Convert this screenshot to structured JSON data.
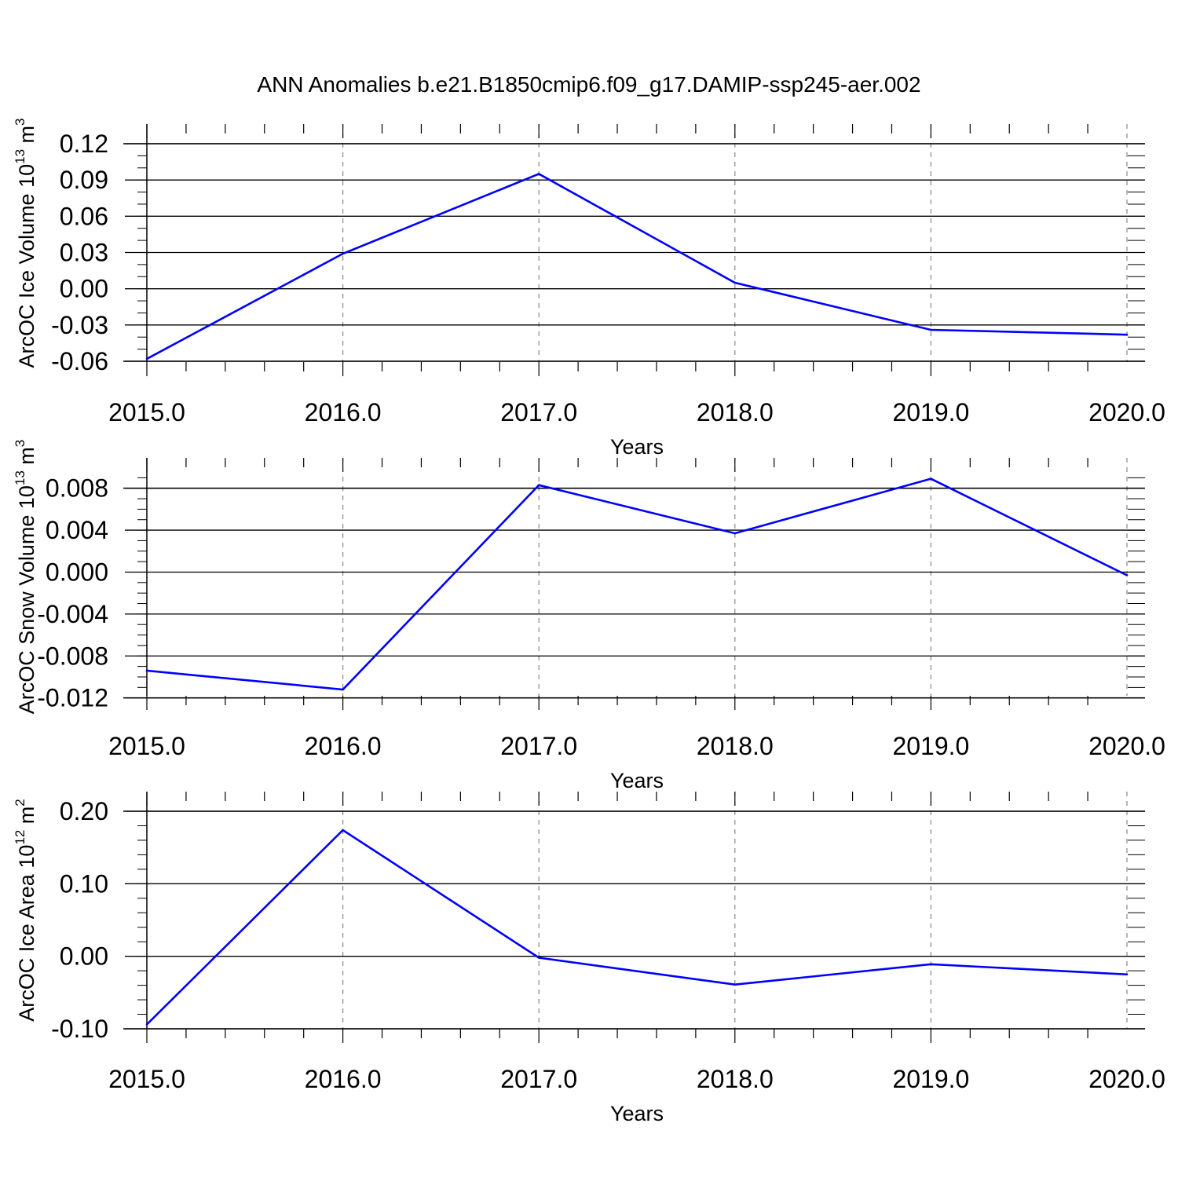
{
  "title": "ANN Anomalies b.e21.B1850cmip6.f09_g17.DAMIP-ssp245-aer.002",
  "colors": {
    "line": "#0000ff",
    "axis": "#000000",
    "grid": "#888888"
  },
  "chart_data": [
    {
      "type": "line",
      "xlabel": "Years",
      "ylabel": {
        "text": "ArcOC Ice Volume 10",
        "exp": "13",
        "unit": " m",
        "unit_exp": "3"
      },
      "x": [
        2015,
        2016,
        2017,
        2018,
        2019,
        2020
      ],
      "xticks": [
        "2015.0",
        "2016.0",
        "2017.0",
        "2018.0",
        "2019.0",
        "2020.0"
      ],
      "xlim": [
        2015,
        2020
      ],
      "ylim": [
        -0.06,
        0.12
      ],
      "yticks": [
        0.12,
        0.09,
        0.06,
        0.03,
        0.0,
        -0.03,
        -0.06
      ],
      "yticklabels": [
        "0.12",
        "0.09",
        "0.06",
        "0.03",
        "0.00",
        "-0.03",
        "-0.06"
      ],
      "yminor": 0.01,
      "grid": "vertical-dashed",
      "values": [
        -0.058,
        0.029,
        0.095,
        0.005,
        -0.034,
        -0.038
      ]
    },
    {
      "type": "line",
      "xlabel": "Years",
      "ylabel": {
        "text": "ArcOC Snow Volume 10",
        "exp": "13",
        "unit": " m",
        "unit_exp": "3"
      },
      "x": [
        2015,
        2016,
        2017,
        2018,
        2019,
        2020
      ],
      "xticks": [
        "2015.0",
        "2016.0",
        "2017.0",
        "2018.0",
        "2019.0",
        "2020.0"
      ],
      "xlim": [
        2015,
        2020
      ],
      "ylim": [
        -0.0118,
        0.0091
      ],
      "yticks": [
        0.008,
        0.004,
        0.0,
        -0.004,
        -0.008,
        -0.012
      ],
      "yticklabels": [
        "0.008",
        "0.004",
        "0.000",
        "-0.004",
        "-0.008",
        "-0.012"
      ],
      "yminor": 0.001,
      "grid": "vertical-dashed",
      "values": [
        -0.0094,
        -0.0112,
        0.0083,
        0.0037,
        0.0089,
        -0.0003
      ]
    },
    {
      "type": "line",
      "xlabel": "Years",
      "ylabel": {
        "text": "ArcOC Ice Area 10",
        "exp": "12",
        "unit": " m",
        "unit_exp": "2"
      },
      "x": [
        2015,
        2016,
        2017,
        2018,
        2019,
        2020
      ],
      "xticks": [
        "2015.0",
        "2016.0",
        "2017.0",
        "2018.0",
        "2019.0",
        "2020.0"
      ],
      "xlim": [
        2015,
        2020
      ],
      "ylim": [
        -0.1,
        0.2
      ],
      "yticks": [
        0.2,
        0.1,
        0.0,
        -0.1
      ],
      "yticklabels": [
        "0.20",
        "0.10",
        "0.00",
        "-0.10"
      ],
      "yminor": 0.02,
      "grid": "vertical-dashed",
      "values": [
        -0.094,
        0.174,
        -0.002,
        -0.039,
        -0.011,
        -0.025
      ]
    }
  ]
}
